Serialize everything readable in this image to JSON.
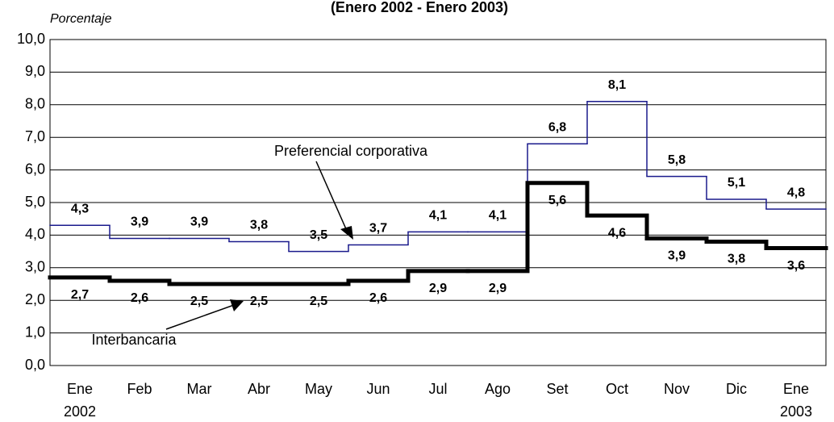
{
  "chart_data": {
    "type": "step-line",
    "title": "(Enero 2002 - Enero 2003)",
    "y_label": "Porcentaje",
    "categories": [
      "Ene",
      "Feb",
      "Mar",
      "Abr",
      "May",
      "Jun",
      "Jul",
      "Ago",
      "Set",
      "Oct",
      "Nov",
      "Dic",
      "Ene"
    ],
    "start_year": "2002",
    "end_year": "2003",
    "ylim": [
      0,
      10
    ],
    "yticks": [
      {
        "value": 0,
        "label": "0,0"
      },
      {
        "value": 1,
        "label": "1,0"
      },
      {
        "value": 2,
        "label": "2,0"
      },
      {
        "value": 3,
        "label": "3,0"
      },
      {
        "value": 4,
        "label": "4,0"
      },
      {
        "value": 5,
        "label": "5,0"
      },
      {
        "value": 6,
        "label": "6,0"
      },
      {
        "value": 7,
        "label": "7,0"
      },
      {
        "value": 8,
        "label": "8,0"
      },
      {
        "value": 9,
        "label": "9,0"
      },
      {
        "value": 10,
        "label": "10,0"
      }
    ],
    "grid": true,
    "series": [
      {
        "name": "Preferencial corporativa",
        "color": "#1a1a8c",
        "width": 1.5,
        "label_side": "above",
        "values": [
          4.3,
          3.9,
          3.9,
          3.8,
          3.5,
          3.7,
          4.1,
          4.1,
          6.8,
          8.1,
          5.8,
          5.1,
          4.8
        ],
        "value_labels": [
          "4,3",
          "3,9",
          "3,9",
          "3,8",
          "3,5",
          "3,7",
          "4,1",
          "4,1",
          "6,8",
          "8,1",
          "5,8",
          "5,1",
          "4,8"
        ]
      },
      {
        "name": "Interbancaria",
        "color": "#000000",
        "width": 5,
        "label_side": "below",
        "values": [
          2.7,
          2.6,
          2.5,
          2.5,
          2.5,
          2.6,
          2.9,
          2.9,
          5.6,
          4.6,
          3.9,
          3.8,
          3.6
        ],
        "value_labels": [
          "2,7",
          "2,6",
          "2,5",
          "2,5",
          "2,5",
          "2,6",
          "2,9",
          "2,9",
          "5,6",
          "4,6",
          "3,9",
          "3,8",
          "3,6"
        ]
      }
    ]
  }
}
